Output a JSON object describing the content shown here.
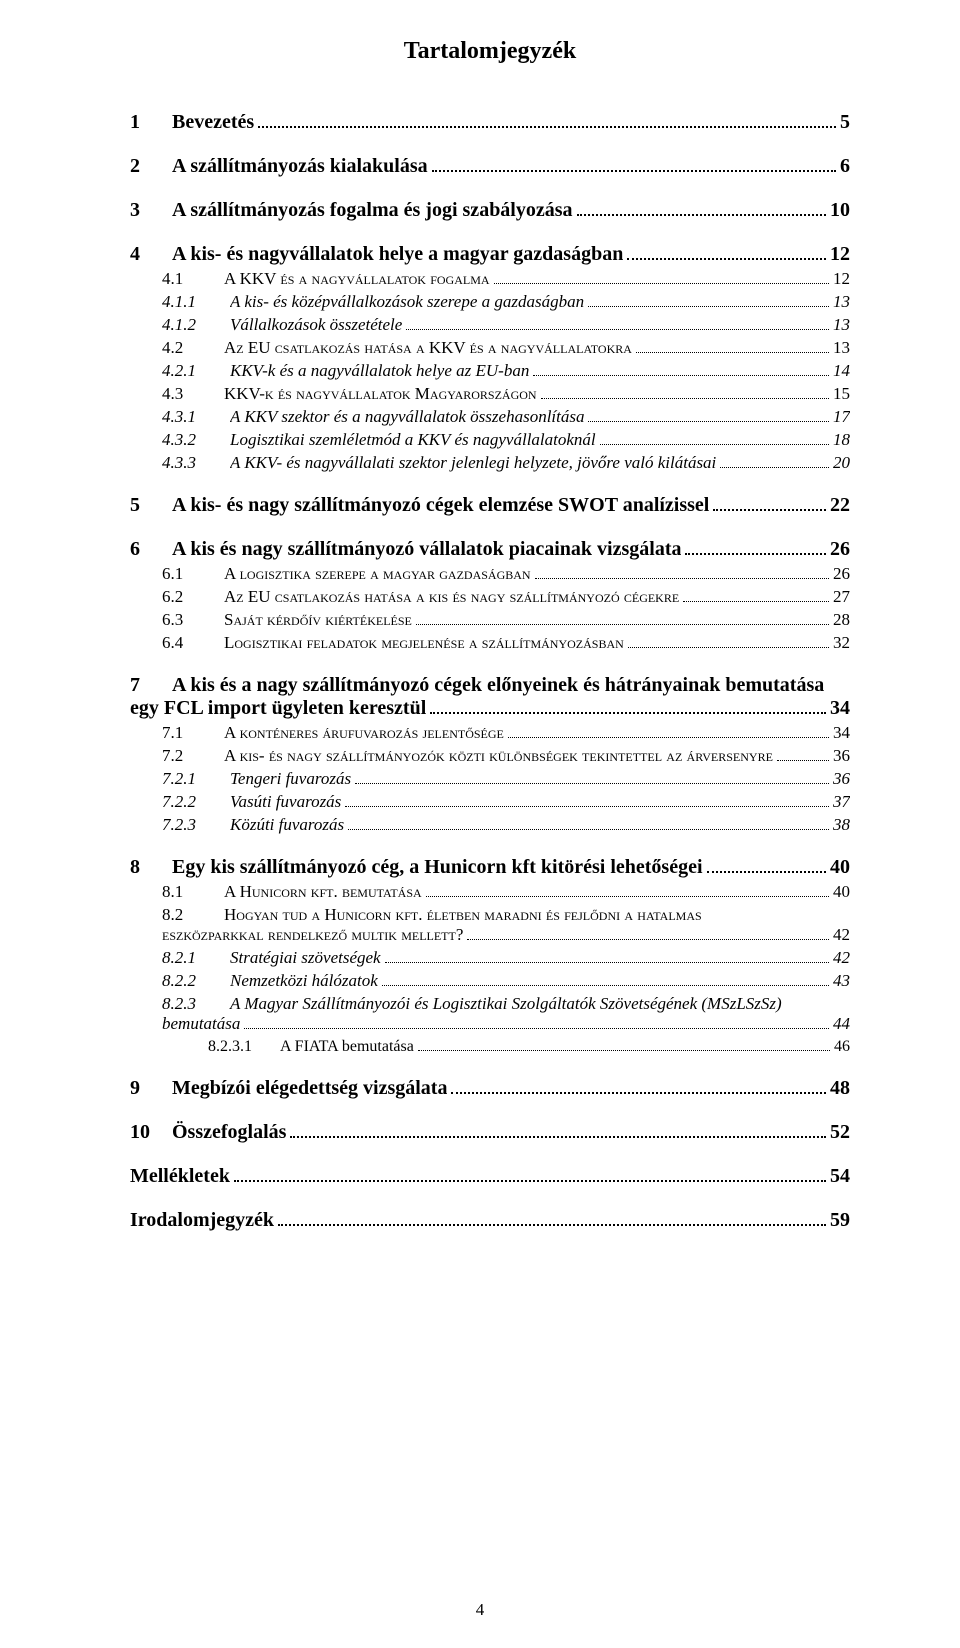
{
  "title": "Tartalomjegyzék",
  "page_number": "4",
  "colors": {
    "text": "#000000",
    "background": "#ffffff"
  },
  "font": {
    "family": "Times New Roman",
    "title_size_pt": 18,
    "h1_size_pt": 15,
    "body_size_pt": 12
  },
  "toc": [
    {
      "level": 1,
      "num": "1",
      "label": "Bevezetés",
      "page": "5"
    },
    {
      "level": 1,
      "num": "2",
      "label": "A szállítmányozás kialakulása",
      "page": "6"
    },
    {
      "level": 1,
      "num": "3",
      "label": "A szállítmányozás fogalma és jogi szabályozása",
      "page": "10"
    },
    {
      "level": 1,
      "num": "4",
      "label": "A kis- és nagyvállalatok helye a magyar gazdaságban",
      "page": "12"
    },
    {
      "level": 2,
      "num": "4.1",
      "label": "A KKV és a nagyvállalatok fogalma",
      "page": "12"
    },
    {
      "level": 3,
      "num": "4.1.1",
      "label": "A kis- és középvállalkozások szerepe a gazdaságban",
      "page": "13"
    },
    {
      "level": 3,
      "num": "4.1.2",
      "label": "Vállalkozások összetétele",
      "page": "13"
    },
    {
      "level": 2,
      "num": "4.2",
      "label": "Az EU csatlakozás hatása a KKV és a nagyvállalatokra",
      "page": "13"
    },
    {
      "level": 3,
      "num": "4.2.1",
      "label": "KKV-k és a nagyvállalatok helye az EU-ban",
      "page": "14"
    },
    {
      "level": 2,
      "num": "4.3",
      "label": "KKV-k és nagyvállalatok Magyarországon",
      "page": "15"
    },
    {
      "level": 3,
      "num": "4.3.1",
      "label": "A KKV szektor és a nagyvállalatok összehasonlítása",
      "page": "17"
    },
    {
      "level": 3,
      "num": "4.3.2",
      "label": "Logisztikai szemléletmód a KKV és nagyvállalatoknál",
      "page": "18"
    },
    {
      "level": 3,
      "num": "4.3.3",
      "label": "A KKV- és nagyvállalati szektor jelenlegi helyzete, jövőre való kilátásai",
      "page": "20"
    },
    {
      "level": 1,
      "num": "5",
      "label": "A kis- és nagy szállítmányozó cégek elemzése SWOT analízissel",
      "page": "22"
    },
    {
      "level": 1,
      "num": "6",
      "label": "A kis és nagy szállítmányozó vállalatok piacainak vizsgálata",
      "page": "26"
    },
    {
      "level": 2,
      "num": "6.1",
      "label": "A logisztika szerepe a magyar gazdaságban",
      "page": "26"
    },
    {
      "level": 2,
      "num": "6.2",
      "label": "Az EU csatlakozás hatása a kis és nagy szállítmányozó cégekre",
      "page": "27"
    },
    {
      "level": 2,
      "num": "6.3",
      "label": "Saját kérdőív kiértékelése",
      "page": "28"
    },
    {
      "level": 2,
      "num": "6.4",
      "label": "Logisztikai feladatok megjelenése a szállítmányozásban",
      "page": "32"
    },
    {
      "level": 1,
      "num": "7",
      "label_line1": "A kis és a nagy szállítmányozó cégek előnyeinek és hátrányainak bemutatása",
      "label_line2": "egy FCL import ügyleten keresztül",
      "page": "34",
      "multiline": true
    },
    {
      "level": 2,
      "num": "7.1",
      "label": "A konténeres árufuvarozás jelentősége",
      "page": "34"
    },
    {
      "level": 2,
      "num": "7.2",
      "label": "A kis- és nagy szállítmányozók közti különbségek tekintettel az árversenyre",
      "page": "36"
    },
    {
      "level": 3,
      "num": "7.2.1",
      "label": "Tengeri fuvarozás",
      "page": "36"
    },
    {
      "level": 3,
      "num": "7.2.2",
      "label": "Vasúti fuvarozás",
      "page": "37"
    },
    {
      "level": 3,
      "num": "7.2.3",
      "label": "Közúti fuvarozás",
      "page": "38"
    },
    {
      "level": 1,
      "num": "8",
      "label": "Egy kis szállítmányozó cég, a Hunicorn kft kitörési lehetőségei",
      "page": "40"
    },
    {
      "level": 2,
      "num": "8.1",
      "label": "A Hunicorn kft. bemutatása",
      "page": "40"
    },
    {
      "level": 2,
      "num": "8.2",
      "label_line1": "Hogyan tud a Hunicorn kft. életben maradni és fejlődni a hatalmas",
      "label_line2": "eszközparkkal rendelkező multik mellett?",
      "page": "42",
      "multiline": true
    },
    {
      "level": 3,
      "num": "8.2.1",
      "label": "Stratégiai szövetségek",
      "page": "42"
    },
    {
      "level": 3,
      "num": "8.2.2",
      "label": "Nemzetközi hálózatok",
      "page": "43"
    },
    {
      "level": 3,
      "num": "8.2.3",
      "label_line1": "A Magyar Szállítmányozói és Logisztikai Szolgáltatók Szövetségének (MSzLSzSz)",
      "label_line2": "bemutatása",
      "page": "44",
      "multiline": true
    },
    {
      "level": 4,
      "num": "8.2.3.1",
      "label": "A FIATA bemutatása",
      "page": "46"
    },
    {
      "level": 1,
      "num": "9",
      "label": "Megbízói elégedettség vizsgálata",
      "page": "48"
    },
    {
      "level": 1,
      "num": "10",
      "label": "Összefoglalás",
      "page": "52"
    },
    {
      "level": 1,
      "num": "",
      "label": "Mellékletek",
      "page": "54"
    },
    {
      "level": 1,
      "num": "",
      "label": "Irodalomjegyzék",
      "page": "59"
    }
  ]
}
